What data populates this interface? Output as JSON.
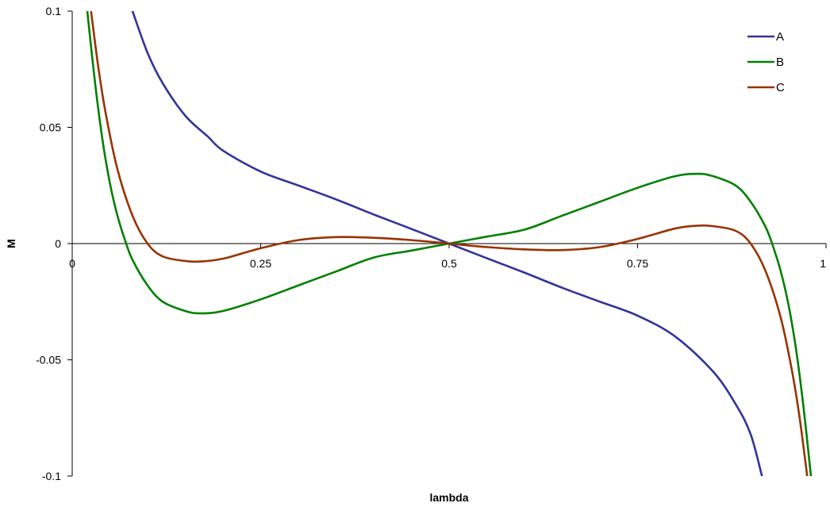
{
  "chart_data": {
    "type": "line",
    "title": "",
    "xlabel": "lambda",
    "ylabel": "M",
    "xlim": [
      0,
      1
    ],
    "ylim": [
      -0.1,
      0.1
    ],
    "x_ticks": [
      0,
      0.25,
      0.5,
      0.75,
      1
    ],
    "x_tick_labels": [
      "0",
      "0.25",
      "0.5",
      "0.75",
      "1"
    ],
    "y_ticks": [
      0.1,
      0.05,
      0,
      -0.05,
      -0.1
    ],
    "y_tick_labels": [
      "0.1",
      "0.05",
      "0",
      "-0.05",
      "-0.1"
    ],
    "grid": false,
    "legend": "top-right",
    "series": [
      {
        "name": "A",
        "color": "#333399",
        "x": [
          0.08,
          0.1,
          0.12,
          0.15,
          0.18,
          0.2,
          0.25,
          0.3,
          0.35,
          0.4,
          0.45,
          0.5,
          0.55,
          0.6,
          0.65,
          0.7,
          0.75,
          0.8,
          0.85,
          0.88,
          0.9,
          0.915
        ],
        "y": [
          0.1,
          0.082,
          0.069,
          0.055,
          0.046,
          0.04,
          0.031,
          0.025,
          0.019,
          0.0125,
          0.0063,
          0.0,
          -0.0063,
          -0.0125,
          -0.019,
          -0.025,
          -0.031,
          -0.04,
          -0.055,
          -0.069,
          -0.082,
          -0.1
        ]
      },
      {
        "name": "B",
        "color": "#008000",
        "x": [
          0.02,
          0.03,
          0.04,
          0.05,
          0.06,
          0.07,
          0.08,
          0.1,
          0.12,
          0.15,
          0.17,
          0.2,
          0.25,
          0.3,
          0.35,
          0.4,
          0.45,
          0.5,
          0.55,
          0.6,
          0.65,
          0.7,
          0.75,
          0.8,
          0.83,
          0.85,
          0.88,
          0.9,
          0.92,
          0.93,
          0.94,
          0.95,
          0.96,
          0.97,
          0.98
        ],
        "y": [
          0.1,
          0.07,
          0.045,
          0.026,
          0.012,
          0.0015,
          -0.007,
          -0.018,
          -0.025,
          -0.029,
          -0.03,
          -0.029,
          -0.024,
          -0.018,
          -0.012,
          -0.006,
          -0.003,
          0.0,
          0.003,
          0.006,
          0.012,
          0.018,
          0.024,
          0.029,
          0.03,
          0.029,
          0.025,
          0.018,
          0.007,
          -0.0015,
          -0.012,
          -0.026,
          -0.045,
          -0.07,
          -0.1
        ]
      },
      {
        "name": "C",
        "color": "#993300",
        "x": [
          0.025,
          0.035,
          0.045,
          0.06,
          0.08,
          0.1,
          0.12,
          0.15,
          0.17,
          0.2,
          0.25,
          0.3,
          0.35,
          0.4,
          0.45,
          0.5,
          0.55,
          0.6,
          0.65,
          0.7,
          0.75,
          0.8,
          0.83,
          0.85,
          0.88,
          0.9,
          0.92,
          0.94,
          0.955,
          0.965,
          0.975
        ],
        "y": [
          0.1,
          0.075,
          0.055,
          0.032,
          0.012,
          0.0,
          -0.0055,
          -0.0075,
          -0.0077,
          -0.0065,
          -0.002,
          0.0015,
          0.0028,
          0.0025,
          0.0015,
          0.0,
          -0.0015,
          -0.0025,
          -0.0028,
          -0.0015,
          0.002,
          0.0065,
          0.0077,
          0.0075,
          0.0055,
          0.0,
          -0.012,
          -0.032,
          -0.055,
          -0.075,
          -0.1
        ]
      }
    ]
  }
}
